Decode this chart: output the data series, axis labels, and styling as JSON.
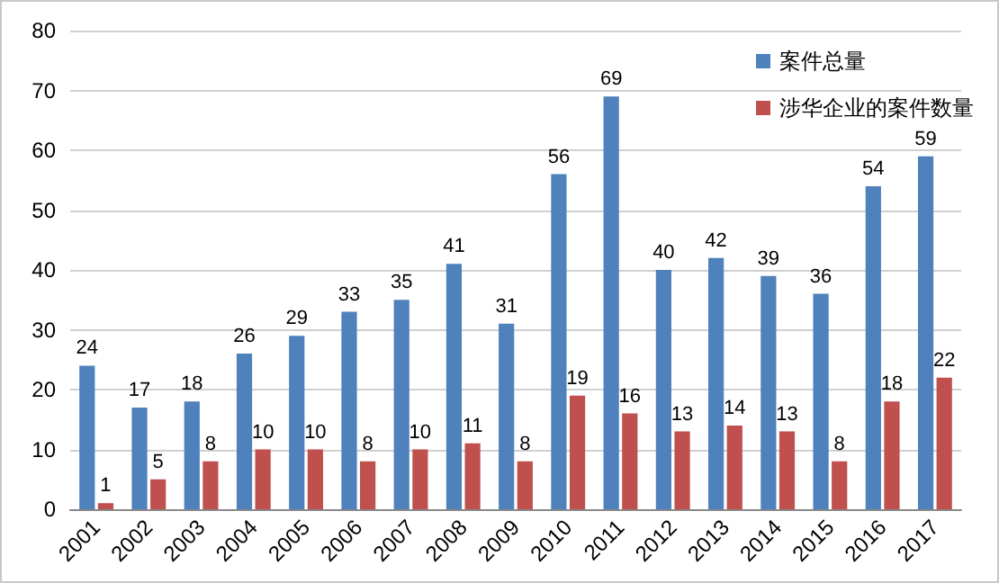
{
  "chart_data": {
    "type": "bar",
    "categories": [
      "2001",
      "2002",
      "2003",
      "2004",
      "2005",
      "2006",
      "2007",
      "2008",
      "2009",
      "2010",
      "2011",
      "2012",
      "2013",
      "2014",
      "2015",
      "2016",
      "2017"
    ],
    "series": [
      {
        "name": "案件总量",
        "color": "#4f81bd",
        "values": [
          24,
          17,
          18,
          26,
          29,
          33,
          35,
          41,
          31,
          56,
          69,
          40,
          42,
          39,
          36,
          54,
          59
        ]
      },
      {
        "name": "涉华企业的案件数量",
        "color": "#c0504d",
        "values": [
          1,
          5,
          8,
          10,
          10,
          8,
          10,
          11,
          8,
          19,
          16,
          13,
          14,
          13,
          8,
          18,
          22
        ]
      }
    ],
    "ylim": [
      0,
      80
    ],
    "yticks": [
      0,
      10,
      20,
      30,
      40,
      50,
      60,
      70,
      80
    ],
    "grid": "y",
    "legend": "top right",
    "data_labels": true
  }
}
